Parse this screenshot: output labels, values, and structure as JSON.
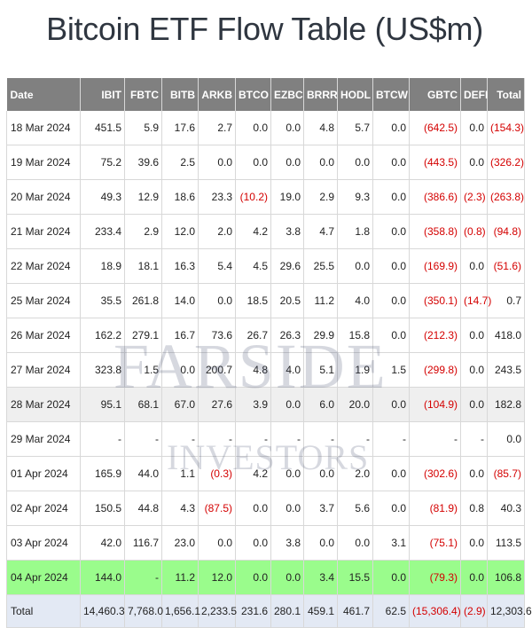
{
  "page": {
    "title": "Bitcoin ETF Flow Table (US$m)"
  },
  "watermark": {
    "line1": "FARSIDE",
    "line2": "INVESTORS"
  },
  "colors": {
    "header_bg": "#808080",
    "negative": "#d40000",
    "latest_row": "#9afc8c",
    "total_row": "#e3e9f4",
    "shaded_row": "#efefef"
  },
  "table": {
    "columns": [
      "Date",
      "IBIT",
      "FBTC",
      "BITB",
      "ARKB",
      "BTCO",
      "EZBC",
      "BRRR",
      "HODL",
      "BTCW",
      "GBTC",
      "DEFI",
      "Total"
    ],
    "rows": [
      {
        "cells": [
          "18 Mar 2024",
          "451.5",
          "5.9",
          "17.6",
          "2.7",
          "0.0",
          "0.0",
          "4.8",
          "5.7",
          "0.0",
          "(642.5)",
          "0.0",
          "(154.3)"
        ],
        "style": ""
      },
      {
        "cells": [
          "19 Mar 2024",
          "75.2",
          "39.6",
          "2.5",
          "0.0",
          "0.0",
          "0.0",
          "0.0",
          "0.0",
          "0.0",
          "(443.5)",
          "0.0",
          "(326.2)"
        ],
        "style": ""
      },
      {
        "cells": [
          "20 Mar 2024",
          "49.3",
          "12.9",
          "18.6",
          "23.3",
          "(10.2)",
          "19.0",
          "2.9",
          "9.3",
          "0.0",
          "(386.6)",
          "(2.3)",
          "(263.8)"
        ],
        "style": ""
      },
      {
        "cells": [
          "21 Mar 2024",
          "233.4",
          "2.9",
          "12.0",
          "2.0",
          "4.2",
          "3.8",
          "4.7",
          "1.8",
          "0.0",
          "(358.8)",
          "(0.8)",
          "(94.8)"
        ],
        "style": ""
      },
      {
        "cells": [
          "22 Mar 2024",
          "18.9",
          "18.1",
          "16.3",
          "5.4",
          "4.5",
          "29.6",
          "25.5",
          "0.0",
          "0.0",
          "(169.9)",
          "0.0",
          "(51.6)"
        ],
        "style": ""
      },
      {
        "cells": [
          "25 Mar 2024",
          "35.5",
          "261.8",
          "14.0",
          "0.0",
          "18.5",
          "20.5",
          "11.2",
          "4.0",
          "0.0",
          "(350.1)",
          "(14.7)",
          "0.7"
        ],
        "style": ""
      },
      {
        "cells": [
          "26 Mar 2024",
          "162.2",
          "279.1",
          "16.7",
          "73.6",
          "26.7",
          "26.3",
          "29.9",
          "15.8",
          "0.0",
          "(212.3)",
          "0.0",
          "418.0"
        ],
        "style": ""
      },
      {
        "cells": [
          "27 Mar 2024",
          "323.8",
          "1.5",
          "0.0",
          "200.7",
          "4.8",
          "4.0",
          "5.1",
          "1.9",
          "1.5",
          "(299.8)",
          "0.0",
          "243.5"
        ],
        "style": ""
      },
      {
        "cells": [
          "28 Mar 2024",
          "95.1",
          "68.1",
          "67.0",
          "27.6",
          "3.9",
          "0.0",
          "6.0",
          "20.0",
          "0.0",
          "(104.9)",
          "0.0",
          "182.8"
        ],
        "style": "shaded"
      },
      {
        "cells": [
          "29 Mar 2024",
          "-",
          "-",
          "-",
          "-",
          "-",
          "-",
          "-",
          "-",
          "-",
          "-",
          "-",
          "0.0"
        ],
        "style": ""
      },
      {
        "cells": [
          "01 Apr 2024",
          "165.9",
          "44.0",
          "1.1",
          "(0.3)",
          "4.2",
          "0.0",
          "0.0",
          "2.0",
          "0.0",
          "(302.6)",
          "0.0",
          "(85.7)"
        ],
        "style": ""
      },
      {
        "cells": [
          "02 Apr 2024",
          "150.5",
          "44.8",
          "4.3",
          "(87.5)",
          "0.0",
          "0.0",
          "3.7",
          "5.6",
          "0.0",
          "(81.9)",
          "0.8",
          "40.3"
        ],
        "style": ""
      },
      {
        "cells": [
          "03 Apr 2024",
          "42.0",
          "116.7",
          "23.0",
          "0.0",
          "0.0",
          "3.8",
          "0.0",
          "0.0",
          "3.1",
          "(75.1)",
          "0.0",
          "113.5"
        ],
        "style": ""
      },
      {
        "cells": [
          "04 Apr 2024",
          "144.0",
          "-",
          "11.2",
          "12.0",
          "0.0",
          "0.0",
          "3.4",
          "15.5",
          "0.0",
          "(79.3)",
          "0.0",
          "106.8"
        ],
        "style": "latest"
      }
    ],
    "total": [
      "Total",
      "14,460.3",
      "7,768.0",
      "1,656.1",
      "2,233.5",
      "231.6",
      "280.1",
      "459.1",
      "461.7",
      "62.5",
      "(15,306.4)",
      "(2.9)",
      "12,303.6"
    ]
  }
}
